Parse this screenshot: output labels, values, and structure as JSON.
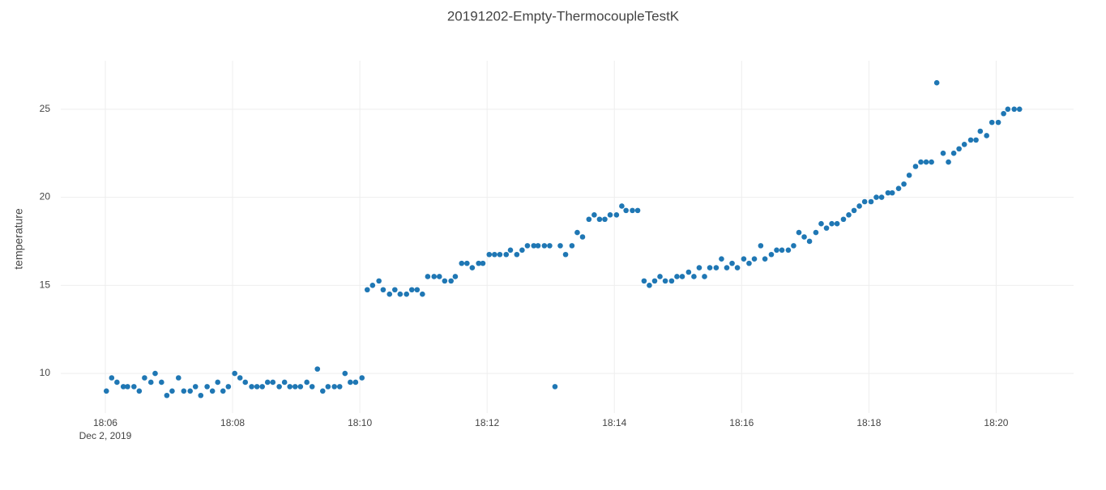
{
  "chart_data": {
    "type": "scatter",
    "title": "20191202-Empty-ThermocoupleTestK",
    "y_label": "temperature",
    "color": "#1f77b4",
    "grid": true,
    "xlim": [
      "18:05:18",
      "18:21:13"
    ],
    "xticks": [
      "18:06",
      "18:08",
      "18:10",
      "18:12",
      "18:14",
      "18:16",
      "18:18",
      "18:20"
    ],
    "x_date_label": "Dec 2, 2019",
    "ylim": [
      7.75,
      27.75
    ],
    "yticks": [
      10,
      15,
      20,
      25
    ],
    "x": [
      "18:06:01",
      "18:06:06",
      "18:06:11",
      "18:06:17",
      "18:06:21",
      "18:06:27",
      "18:06:32",
      "18:06:37",
      "18:06:43",
      "18:06:47",
      "18:06:53",
      "18:06:58",
      "18:07:03",
      "18:07:09",
      "18:07:14",
      "18:07:20",
      "18:07:25",
      "18:07:30",
      "18:07:36",
      "18:07:41",
      "18:07:46",
      "18:07:51",
      "18:07:56",
      "18:08:02",
      "18:08:07",
      "18:08:12",
      "18:08:18",
      "18:08:23",
      "18:08:28",
      "18:08:33",
      "18:08:38",
      "18:08:44",
      "18:08:49",
      "18:08:54",
      "18:08:59",
      "18:09:04",
      "18:09:10",
      "18:09:15",
      "18:09:20",
      "18:09:25",
      "18:09:30",
      "18:09:36",
      "18:09:41",
      "18:09:46",
      "18:09:51",
      "18:09:56",
      "18:10:02",
      "18:10:07",
      "18:10:12",
      "18:10:18",
      "18:10:22",
      "18:10:28",
      "18:10:33",
      "18:10:38",
      "18:10:44",
      "18:10:49",
      "18:10:54",
      "18:10:59",
      "18:11:04",
      "18:11:10",
      "18:11:15",
      "18:11:20",
      "18:11:26",
      "18:11:30",
      "18:11:36",
      "18:11:41",
      "18:11:46",
      "18:11:52",
      "18:11:56",
      "18:12:02",
      "18:12:07",
      "18:12:12",
      "18:12:18",
      "18:12:22",
      "18:12:28",
      "18:12:33",
      "18:12:38",
      "18:12:44",
      "18:12:48",
      "18:12:54",
      "18:12:59",
      "18:13:04",
      "18:13:09",
      "18:13:14",
      "18:13:20",
      "18:13:25",
      "18:13:30",
      "18:13:36",
      "18:13:41",
      "18:13:46",
      "18:13:51",
      "18:13:56",
      "18:14:02",
      "18:14:07",
      "18:14:11",
      "18:14:17",
      "18:14:22",
      "18:14:28",
      "18:14:33",
      "18:14:38",
      "18:14:43",
      "18:14:48",
      "18:14:54",
      "18:14:59",
      "18:15:04",
      "18:15:10",
      "18:15:15",
      "18:15:20",
      "18:15:25",
      "18:15:30",
      "18:15:36",
      "18:15:41",
      "18:15:46",
      "18:15:51",
      "18:15:56",
      "18:16:02",
      "18:16:07",
      "18:16:12",
      "18:16:18",
      "18:16:22",
      "18:16:28",
      "18:16:33",
      "18:16:38",
      "18:16:44",
      "18:16:49",
      "18:16:54",
      "18:16:59",
      "18:17:04",
      "18:17:10",
      "18:17:15",
      "18:17:20",
      "18:17:25",
      "18:17:30",
      "18:17:36",
      "18:17:41",
      "18:17:46",
      "18:17:51",
      "18:17:56",
      "18:18:02",
      "18:18:07",
      "18:18:12",
      "18:18:18",
      "18:18:22",
      "18:18:28",
      "18:18:33",
      "18:18:38",
      "18:18:44",
      "18:18:49",
      "18:18:54",
      "18:18:59",
      "18:19:04",
      "18:19:10",
      "18:19:15",
      "18:19:20",
      "18:19:25",
      "18:19:30",
      "18:19:36",
      "18:19:41",
      "18:19:45",
      "18:19:51",
      "18:19:56",
      "18:20:02",
      "18:20:07",
      "18:20:11",
      "18:20:17",
      "18:20:22"
    ],
    "values": [
      9,
      9.75,
      9.5,
      9.25,
      9.25,
      9.25,
      9,
      9.75,
      9.5,
      10,
      9.5,
      8.75,
      9,
      9.75,
      9,
      9,
      9.25,
      8.75,
      9.25,
      9,
      9.5,
      9,
      9.25,
      10,
      9.75,
      9.5,
      9.25,
      9.25,
      9.25,
      9.5,
      9.5,
      9.25,
      9.5,
      9.25,
      9.25,
      9.25,
      9.5,
      9.25,
      10.25,
      9,
      9.25,
      9.25,
      9.25,
      10,
      9.5,
      9.5,
      9.75,
      14.75,
      15,
      15.25,
      14.75,
      14.5,
      14.75,
      14.5,
      14.5,
      14.75,
      14.75,
      14.5,
      15.5,
      15.5,
      15.5,
      15.25,
      15.25,
      15.5,
      16.25,
      16.25,
      16,
      16.25,
      16.25,
      16.75,
      16.75,
      16.75,
      16.75,
      17,
      16.75,
      17,
      17.25,
      17.25,
      17.25,
      17.25,
      17.25,
      9.25,
      17.25,
      16.75,
      17.25,
      18,
      17.75,
      18.75,
      19,
      18.75,
      18.75,
      19,
      19,
      19.5,
      19.25,
      19.25,
      19.25,
      15.25,
      15,
      15.25,
      15.5,
      15.25,
      15.25,
      15.5,
      15.5,
      15.75,
      15.5,
      16,
      15.5,
      16,
      16,
      16.5,
      16,
      16.25,
      16,
      16.5,
      16.25,
      16.5,
      17.25,
      16.5,
      16.75,
      17,
      17,
      17,
      17.25,
      18,
      17.75,
      17.5,
      18,
      18.5,
      18.25,
      18.5,
      18.5,
      18.75,
      19,
      19.25,
      19.5,
      19.75,
      19.75,
      20,
      20,
      20.25,
      20.25,
      20.5,
      20.75,
      21.25,
      21.75,
      22,
      22,
      22,
      26.5,
      22.5,
      22,
      22.5,
      22.75,
      23,
      23.25,
      23.25,
      23.75,
      23.5,
      24.25,
      24.25,
      24.75,
      25,
      25,
      25
    ]
  }
}
